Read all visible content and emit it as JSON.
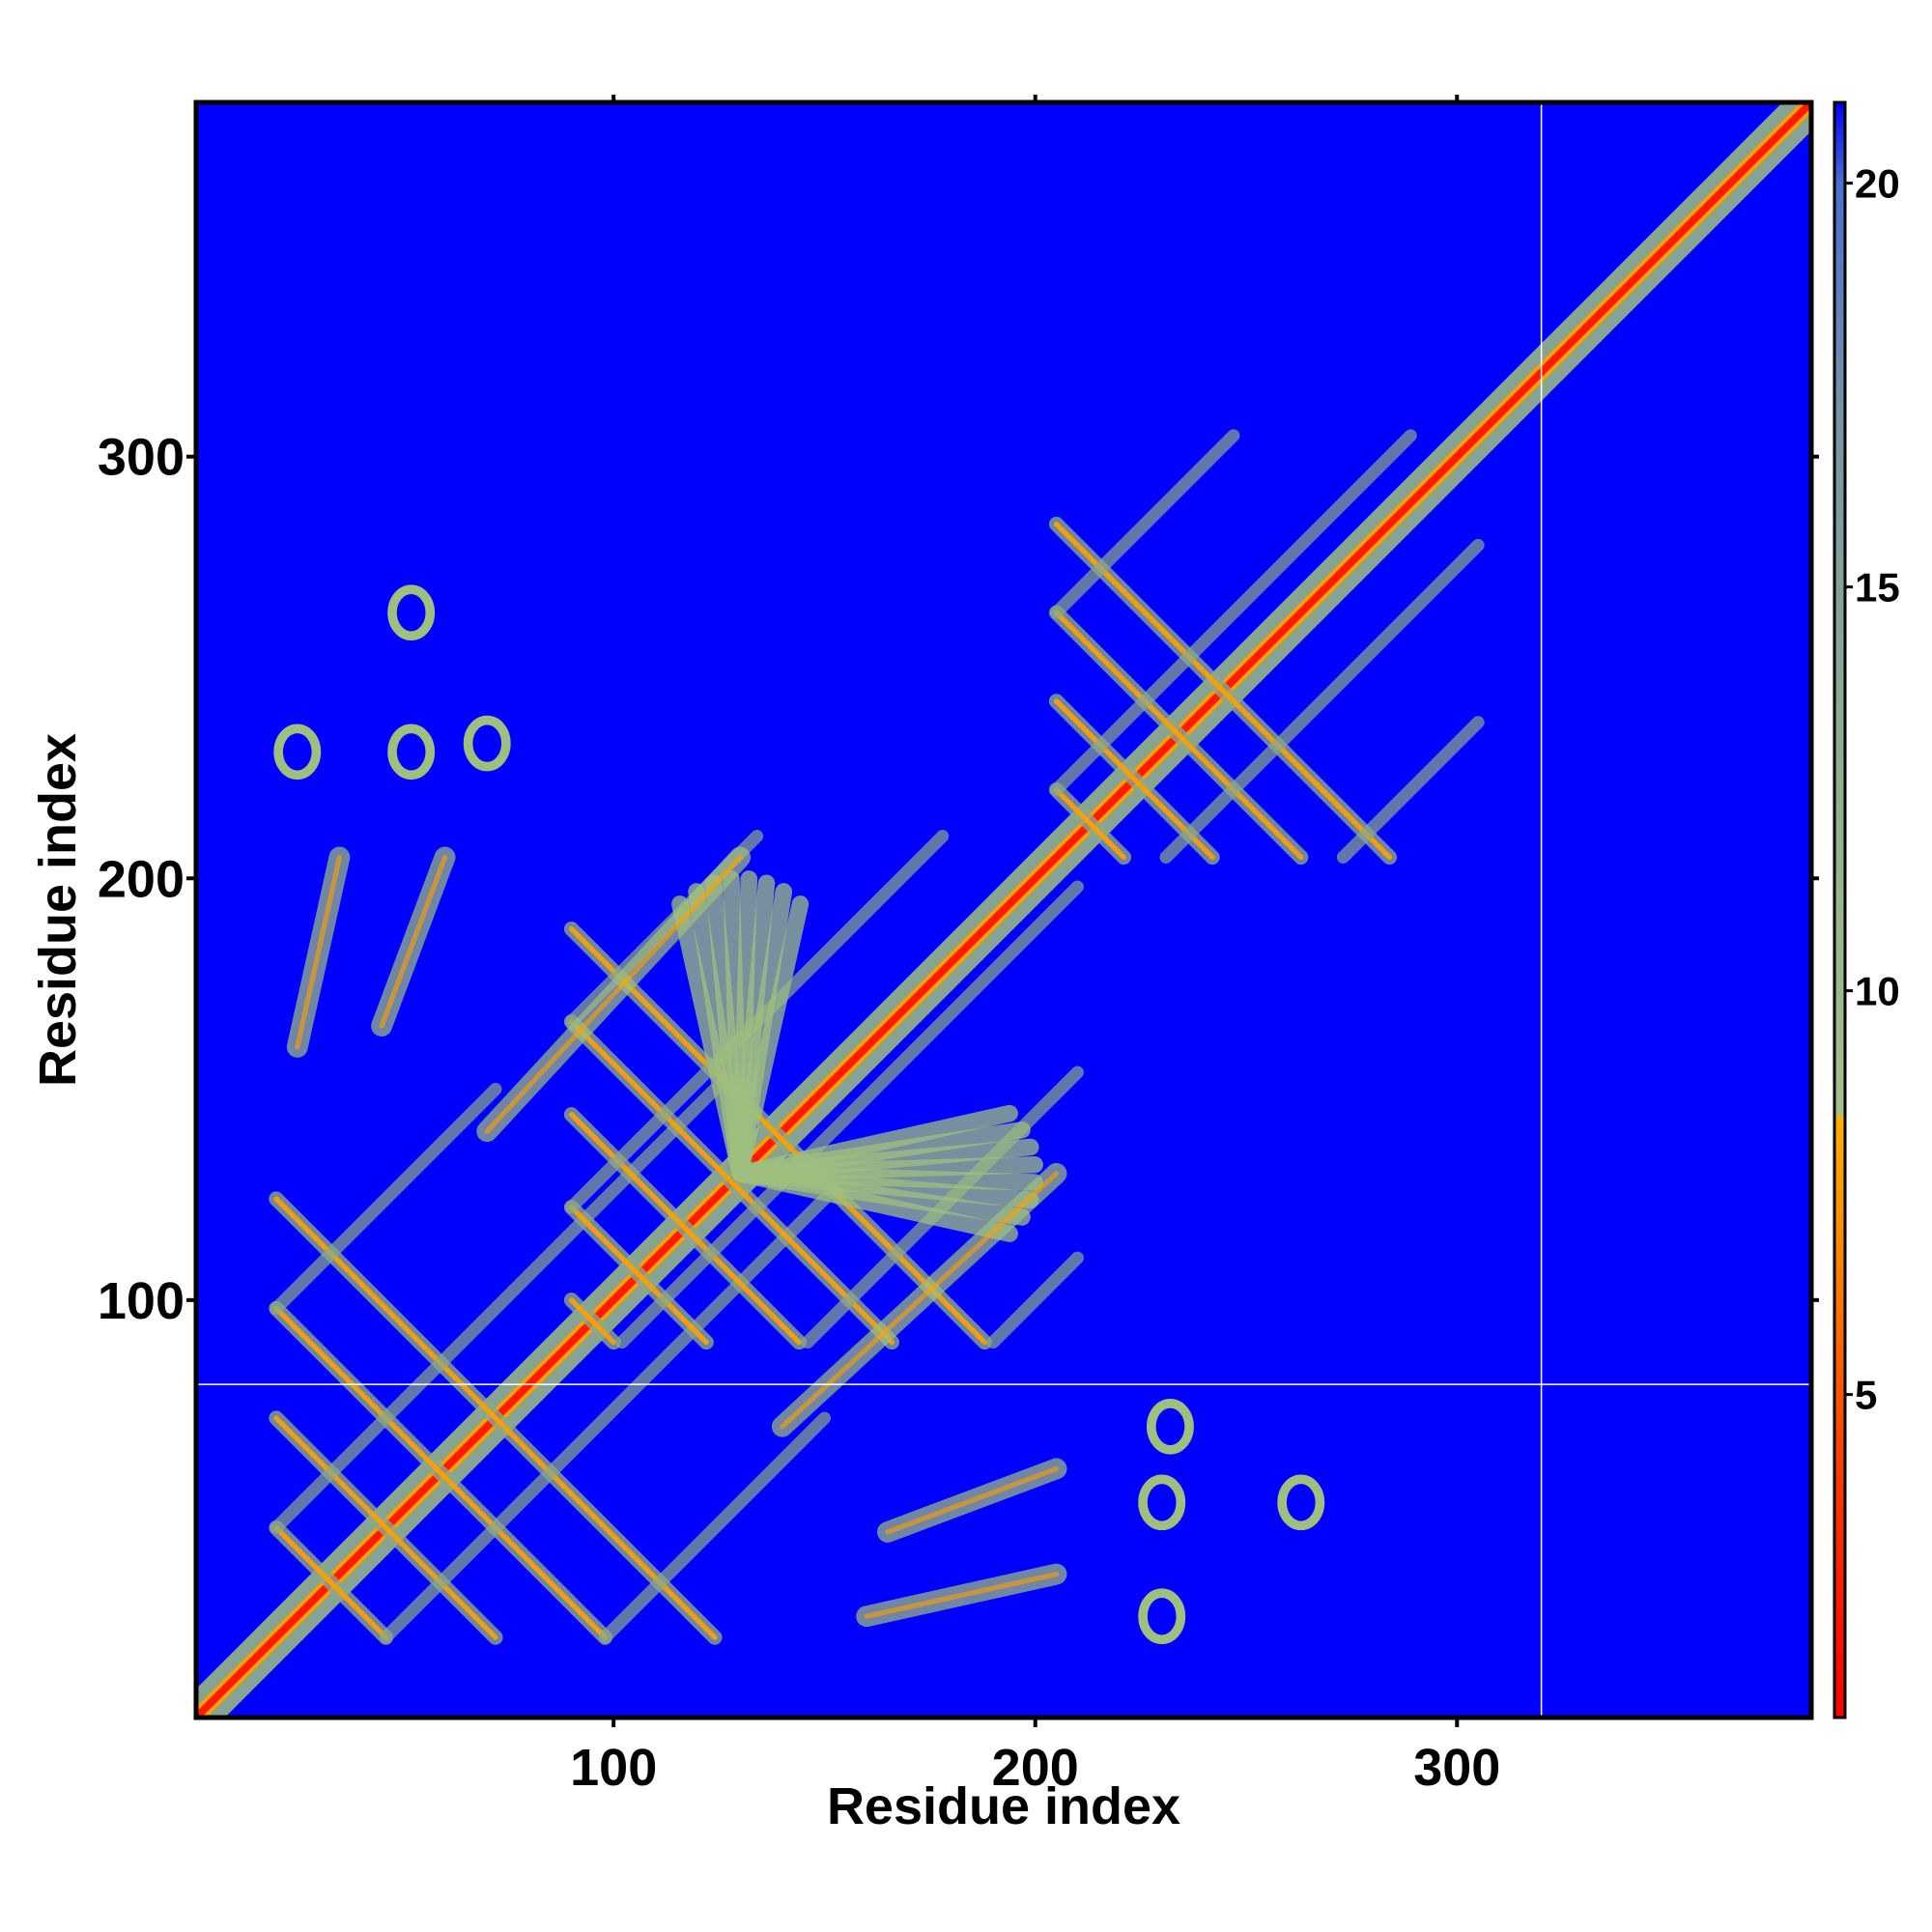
{
  "chart_data": {
    "type": "heatmap",
    "title": "",
    "xlabel": "Residue index",
    "ylabel": "Residue index",
    "xlim": [
      1,
      384
    ],
    "ylim": [
      1,
      384
    ],
    "x_ticks": [
      100,
      200,
      300
    ],
    "y_ticks": [
      100,
      200,
      300
    ],
    "x_tick_labels": [
      "100",
      "200",
      "300"
    ],
    "y_tick_labels": [
      "100",
      "200",
      "300"
    ],
    "grid": false,
    "colorbar": {
      "placement": "right",
      "range": [
        1,
        21
      ],
      "ticks": [
        5,
        10,
        15,
        20
      ],
      "tick_labels": [
        "5",
        "10",
        "15",
        "20"
      ],
      "colors": [
        "#ff0000",
        "#ff6a00",
        "#ffb000",
        "#9fbf7f",
        "#6f8fa0",
        "#0000ff"
      ],
      "above_max_color": "#0000ff"
    },
    "matrix_description": "symmetric residue-residue distance map; low values (red) along diagonal, contact patterns (green/orange) in off-diagonal lattices",
    "reference_lines": {
      "x": 320,
      "y": 80,
      "color": "#ffffff"
    },
    "contact_features": [
      {
        "kind": "diagonal",
        "from": 1,
        "to": 384,
        "width": 7
      },
      {
        "kind": "lattice",
        "x": [
          205,
          305
        ],
        "y": [
          205,
          305
        ],
        "spacing": 21
      },
      {
        "kind": "lattice",
        "x": [
          20,
          150
        ],
        "y": [
          20,
          150
        ],
        "spacing": 26
      },
      {
        "kind": "lattice",
        "x": [
          90,
          210
        ],
        "y": [
          90,
          210
        ],
        "spacing": 22
      },
      {
        "kind": "fan",
        "center": [
          130,
          130
        ],
        "spokes": 8
      },
      {
        "kind": "blob",
        "x": 52,
        "y": 263
      },
      {
        "kind": "blob",
        "x": 52,
        "y": 230
      },
      {
        "kind": "blob",
        "x": 25,
        "y": 230
      },
      {
        "kind": "blob",
        "x": 70,
        "y": 232
      },
      {
        "kind": "blob",
        "x": 230,
        "y": 52
      },
      {
        "kind": "blob",
        "x": 263,
        "y": 52
      },
      {
        "kind": "blob",
        "x": 230,
        "y": 25
      },
      {
        "kind": "blob",
        "x": 232,
        "y": 70
      },
      {
        "kind": "streak",
        "x": [
          25,
          35
        ],
        "y": [
          160,
          205
        ]
      },
      {
        "kind": "streak",
        "x": [
          45,
          60
        ],
        "y": [
          165,
          205
        ]
      },
      {
        "kind": "streak",
        "x": [
          70,
          130
        ],
        "y": [
          140,
          205
        ]
      },
      {
        "kind": "streak",
        "x": [
          160,
          205
        ],
        "y": [
          25,
          35
        ]
      },
      {
        "kind": "streak",
        "x": [
          165,
          205
        ],
        "y": [
          45,
          60
        ]
      },
      {
        "kind": "streak",
        "x": [
          140,
          205
        ],
        "y": [
          70,
          130
        ]
      }
    ]
  }
}
